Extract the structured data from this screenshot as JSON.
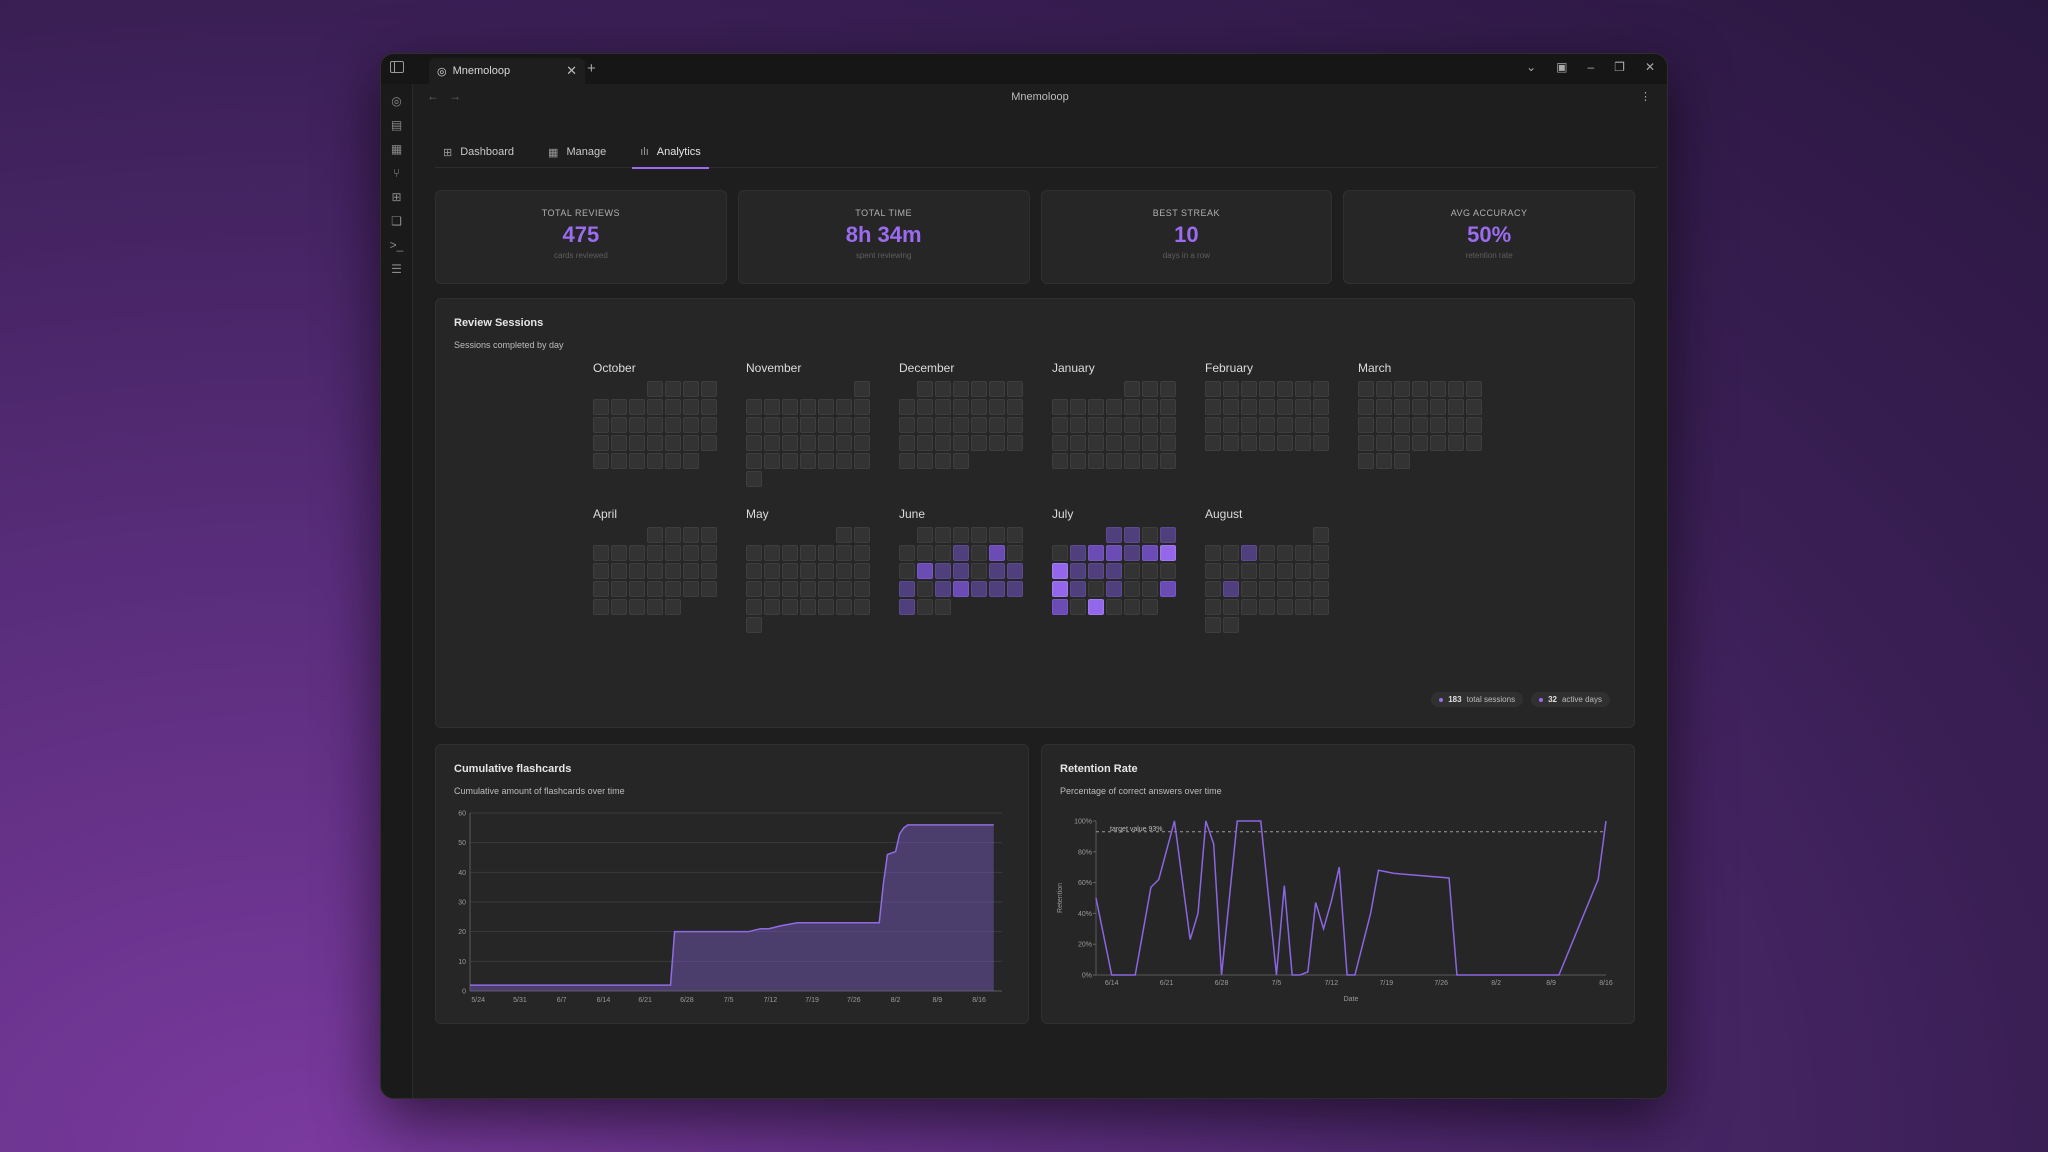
{
  "window": {
    "tab_title": "Mnemoloop",
    "new_tab": "+",
    "close_tab": "✕",
    "view_title": "Mnemoloop",
    "more": "⋮",
    "back": "←",
    "forward": "→"
  },
  "view_tabs": [
    {
      "label": "Dashboard",
      "icon": "grid-icon"
    },
    {
      "label": "Manage",
      "icon": "table-icon"
    },
    {
      "label": "Analytics",
      "icon": "bar-chart-icon",
      "active": true
    }
  ],
  "stats": [
    {
      "label": "TOTAL REVIEWS",
      "value": "475",
      "sub": "cards reviewed"
    },
    {
      "label": "TOTAL TIME",
      "value": "8h 34m",
      "sub": "spent reviewing"
    },
    {
      "label": "BEST STREAK",
      "value": "10",
      "sub": "days in a row"
    },
    {
      "label": "AVG ACCURACY",
      "value": "50%",
      "sub": "retention rate"
    }
  ],
  "review_sessions": {
    "title": "Review Sessions",
    "subtitle": "Sessions completed by day",
    "months": [
      {
        "name": "October",
        "days": 31,
        "offset": 3
      },
      {
        "name": "November",
        "days": 30,
        "offset": 6
      },
      {
        "name": "December",
        "days": 31,
        "offset": 1
      },
      {
        "name": "January",
        "days": 31,
        "offset": 4
      },
      {
        "name": "February",
        "days": 28,
        "offset": 0
      },
      {
        "name": "March",
        "days": 31,
        "offset": 0
      },
      {
        "name": "April",
        "days": 30,
        "offset": 3
      },
      {
        "name": "May",
        "days": 31,
        "offset": 5
      },
      {
        "name": "June",
        "days": 30,
        "offset": 1
      },
      {
        "name": "July",
        "days": 31,
        "offset": 3
      },
      {
        "name": "August",
        "days": 31,
        "offset": 6
      }
    ],
    "activity": {
      "June": {
        "10": 1,
        "12": 2,
        "15": 2,
        "16": 1,
        "17": 1,
        "19": 1,
        "20": 1,
        "21": 1,
        "23": 1,
        "24": 2,
        "25": 1,
        "26": 1,
        "27": 1,
        "28": 1
      },
      "July": {
        "1": 1,
        "2": 1,
        "4": 1,
        "6": 1,
        "7": 2,
        "8": 2,
        "9": 1,
        "10": 2,
        "11": 3,
        "12": 3,
        "13": 1,
        "14": 1,
        "15": 1,
        "19": 3,
        "20": 1,
        "22": 1,
        "25": 2,
        "26": 2,
        "28": 3
      },
      "August": {
        "4": 1,
        "17": 1
      }
    },
    "total_sessions": "183",
    "total_sessions_label": "total sessions",
    "active_days": "32",
    "active_days_label": "active days"
  },
  "cumulative_chart": {
    "title": "Cumulative flashcards",
    "subtitle": "Cumulative amount of flashcards over time"
  },
  "retention_chart": {
    "title": "Retention Rate",
    "subtitle": "Percentage of correct answers over time",
    "target_label": "target value 93%"
  },
  "chart_data": [
    {
      "type": "area",
      "title": "Cumulative flashcards",
      "xlabel": "",
      "ylabel": "",
      "ylim": [
        0,
        60
      ],
      "xticks": [
        "5/24",
        "5/31",
        "6/7",
        "6/14",
        "6/21",
        "6/28",
        "7/5",
        "7/12",
        "7/19",
        "7/26",
        "8/2",
        "8/9",
        "8/16"
      ],
      "yticks": [
        0,
        10,
        20,
        30,
        40,
        50,
        60
      ],
      "x_days": [
        0,
        49,
        50,
        68,
        71,
        73,
        76,
        80,
        100,
        101,
        102,
        104,
        105,
        106,
        107,
        108,
        128
      ],
      "values": [
        2,
        2,
        20,
        20,
        21,
        21,
        22,
        23,
        23,
        36,
        46,
        47,
        53,
        55,
        56,
        56,
        56
      ],
      "color": "#7b5cc4"
    },
    {
      "type": "line",
      "title": "Retention Rate",
      "xlabel": "Date",
      "ylabel": "Retention",
      "ylim": [
        0,
        100
      ],
      "yticks": [
        "0%",
        "20%",
        "40%",
        "60%",
        "80%",
        "100%"
      ],
      "xticks": [
        "6/14",
        "6/21",
        "6/28",
        "7/5",
        "7/12",
        "7/19",
        "7/26",
        "8/2",
        "8/9",
        "8/16"
      ],
      "target": 93,
      "x_days": [
        0,
        2,
        4,
        5,
        7,
        8,
        10,
        12,
        13,
        14,
        15,
        16,
        17,
        18,
        19,
        20,
        21,
        23,
        24,
        25,
        26,
        27,
        28,
        29,
        30,
        31,
        32,
        33,
        34,
        35,
        36,
        38,
        45,
        46,
        47,
        58,
        59,
        64,
        65
      ],
      "values": [
        50,
        0,
        0,
        0,
        57,
        62,
        100,
        23,
        40,
        100,
        85,
        0,
        50,
        100,
        100,
        100,
        100,
        0,
        58,
        0,
        0,
        2,
        47,
        30,
        48,
        70,
        0,
        0,
        20,
        40,
        68,
        66,
        63,
        0,
        0,
        0,
        0,
        62,
        100
      ],
      "color": "#8a66e0"
    }
  ]
}
